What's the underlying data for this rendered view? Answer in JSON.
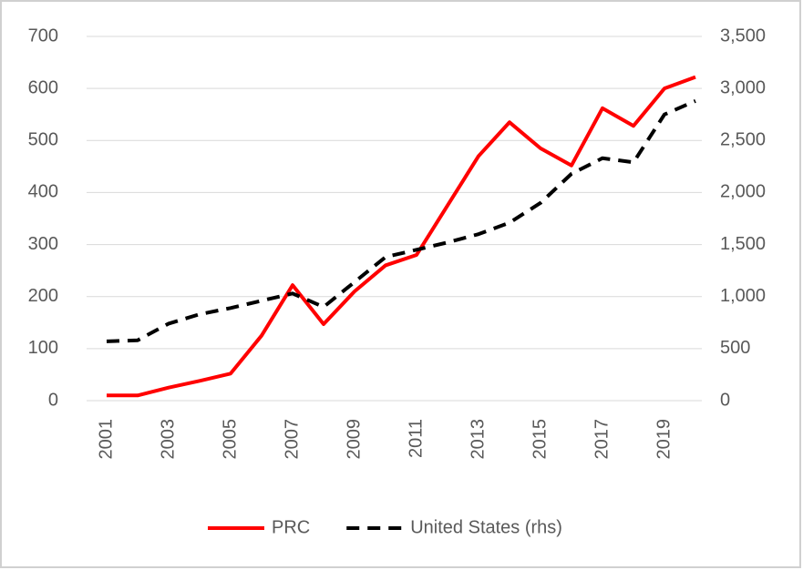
{
  "chart_data": {
    "type": "line",
    "categories": [
      "2001",
      null,
      "2003",
      null,
      "2005",
      null,
      "2007",
      null,
      "2009",
      null,
      "2011",
      null,
      "2013",
      null,
      "2015",
      null,
      "2017",
      null,
      "2019",
      null
    ],
    "series": [
      {
        "name": "PRC",
        "color": "#ff0000",
        "values": [
          10,
          10,
          25,
          38,
          52,
          125,
          222,
          147,
          210,
          260,
          280,
          375,
          470,
          535,
          485,
          452,
          562,
          528,
          600,
          622
        ]
      },
      {
        "name": "United States (rhs)",
        "color": "#000000",
        "axis": "y2",
        "dashed": true,
        "values": [
          570,
          580,
          740,
          830,
          890,
          960,
          1030,
          900,
          1140,
          1380,
          1450,
          1520,
          1600,
          1710,
          1900,
          2180,
          2330,
          2290,
          2750,
          2880
        ]
      }
    ],
    "ylim": [
      0,
      700
    ],
    "yticks": [
      0,
      100,
      200,
      300,
      400,
      500,
      600,
      700
    ],
    "y2lim": [
      0,
      3500
    ],
    "y2ticks": [
      0,
      500,
      {
        "value": 1000,
        "label": "1,000"
      },
      {
        "value": 1500,
        "label": "1,500"
      },
      {
        "value": 2000,
        "label": "2,000"
      },
      {
        "value": 2500,
        "label": "2,500"
      },
      {
        "value": 3000,
        "label": "3,000"
      },
      {
        "value": 3500,
        "label": "3,500"
      }
    ],
    "grid": true,
    "legend": "bottom"
  }
}
